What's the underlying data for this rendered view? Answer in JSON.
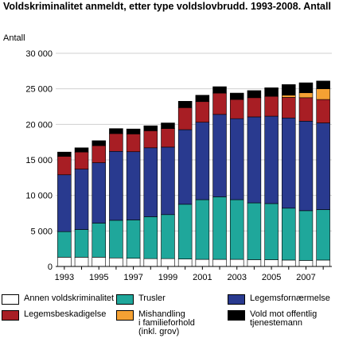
{
  "chart_data": {
    "type": "bar",
    "stacked": true,
    "title": "Voldskriminalitet anmeldt, etter type voldslovbrudd. 1993-2008. Antall",
    "ylabel": "Antall",
    "xlabel": "",
    "ylim": [
      0,
      30000
    ],
    "y_ticks": [
      0,
      5000,
      10000,
      15000,
      20000,
      25000,
      30000
    ],
    "y_tick_labels": [
      "0",
      "5 000",
      "10 000",
      "15 000",
      "20 000",
      "25 000",
      "30 000"
    ],
    "x_tick_labels": [
      "1993",
      "1995",
      "1997",
      "1999",
      "2001",
      "2003",
      "2005",
      "2007"
    ],
    "grid": true,
    "legend_position": "bottom",
    "categories": [
      "1993",
      "1994",
      "1995",
      "1996",
      "1997",
      "1998",
      "1999",
      "2000",
      "2001",
      "2002",
      "2003",
      "2004",
      "2005",
      "2006",
      "2007",
      "2008"
    ],
    "series": [
      {
        "name": "Annen voldskriminalitet",
        "color": "#ffffff",
        "values": [
          1300,
          1300,
          1300,
          1200,
          1150,
          1100,
          1100,
          1050,
          1000,
          1000,
          1000,
          950,
          950,
          900,
          850,
          900
        ]
      },
      {
        "name": "Trusler",
        "color": "#1fa79b",
        "values": [
          3600,
          3900,
          4800,
          5300,
          5400,
          5900,
          6200,
          7700,
          8400,
          8800,
          8400,
          8000,
          7900,
          7300,
          7000,
          7100
        ]
      },
      {
        "name": "Legemsfornærmelse",
        "color": "#293a8f",
        "values": [
          8000,
          8500,
          8500,
          9700,
          9600,
          9700,
          9500,
          10500,
          10900,
          11600,
          11400,
          12100,
          12300,
          12700,
          12600,
          12200
        ]
      },
      {
        "name": "Legemsbeskadigelse",
        "color": "#a81e24",
        "values": [
          2600,
          2400,
          2400,
          2500,
          2500,
          2400,
          2600,
          3100,
          2900,
          3000,
          2700,
          2700,
          2800,
          2900,
          3300,
          3300
        ]
      },
      {
        "name": "Mishandling\ni familieforhold\n(inkl. grov)",
        "color": "#f5a133",
        "values": [
          0,
          0,
          0,
          0,
          0,
          0,
          0,
          0,
          0,
          0,
          0,
          0,
          0,
          300,
          700,
          1500
        ]
      },
      {
        "name": "Vold mot offentlig\ntjenestemann",
        "color": "#000000",
        "values": [
          600,
          600,
          700,
          700,
          700,
          700,
          800,
          900,
          900,
          900,
          900,
          1000,
          1200,
          1500,
          1400,
          1100
        ]
      }
    ]
  }
}
